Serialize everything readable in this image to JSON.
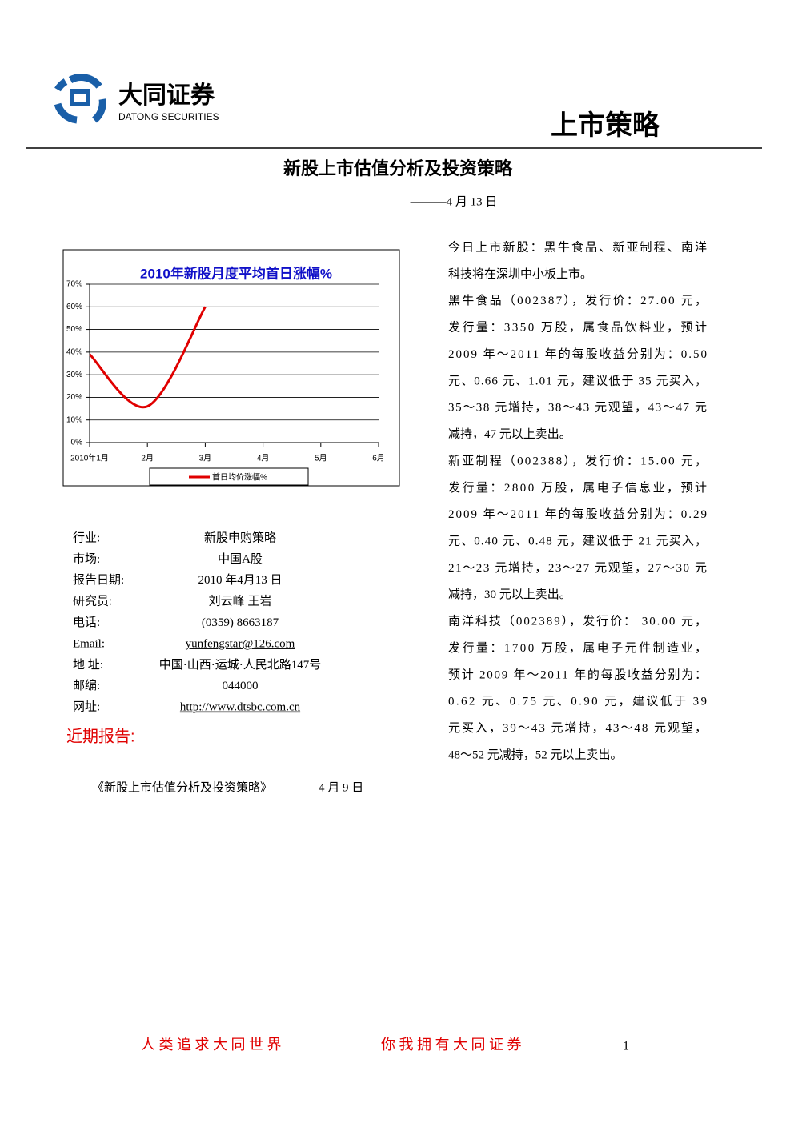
{
  "header": {
    "logo_cn": "大同证券",
    "logo_en": "DATONG SECURITIES",
    "section": "上市策略"
  },
  "title": "新股上市估值分析及投资策略",
  "date": "———4 月 13 日",
  "chart_data": {
    "type": "line",
    "title": "2010年新股月度平均首日涨幅%",
    "categories": [
      "2010年1月",
      "2月",
      "3月",
      "4月",
      "5月",
      "6月"
    ],
    "series": [
      {
        "name": "首日均价涨幅%",
        "color": "#e00000",
        "values": [
          39,
          16,
          60,
          null,
          null,
          null
        ]
      }
    ],
    "ylim": [
      0,
      70
    ],
    "yticks": [
      {
        "value": 0,
        "label": "0%"
      },
      {
        "value": 10,
        "label": "10%"
      },
      {
        "value": 20,
        "label": "20%"
      },
      {
        "value": 30,
        "label": "30%"
      },
      {
        "value": 40,
        "label": "40%"
      },
      {
        "value": 50,
        "label": "50%"
      },
      {
        "value": 60,
        "label": "60%"
      },
      {
        "value": 70,
        "label": "70%"
      }
    ],
    "grid": true,
    "legend": "bottom"
  },
  "info": [
    [
      "行业:",
      "新股申购策略"
    ],
    [
      "市场:",
      "中国A股"
    ],
    [
      "报告日期:",
      "2010  年4月13  日"
    ],
    [
      "研究员:",
      "刘云峰    王岩"
    ],
    [
      "电话:",
      "(0359)  8663187"
    ],
    [
      "Email:",
      "yunfengstar@126.com"
    ],
    [
      "地  址:",
      "中国·山西·运城·人民北路147号"
    ],
    [
      "邮编:",
      "044000"
    ],
    [
      "网址:",
      "http://www.dtsbc.com.cn"
    ]
  ],
  "recent_heading": "近期报告:",
  "recent": [
    [
      "《新股上市估值分析及投资策略》",
      "4 月 9 日"
    ]
  ],
  "paragraphs": [
    [
      "今日上市新股：黑牛食品、新亚制程、南洋",
      "科技将在深圳中小板上市。"
    ],
    [
      "黑牛食品（002387），发行价：27.00 元，",
      "发行量：3350 万股，属食品饮料业，预计",
      "2009 年～2011 年的每股收益分别为：0.50",
      "元、0.66 元、1.01 元，建议低于 35 元买入，",
      "35～38 元增持，38～43 元观望，43～47 元",
      "减持，47 元以上卖出。"
    ],
    [
      "新亚制程（002388），发行价：15.00 元，",
      "发行量：2800 万股，属电子信息业，预计",
      "2009 年～2011 年的每股收益分别为：0.29",
      "元、0.40 元、0.48 元，建议低于 21 元买入，",
      "21～23 元增持，23～27 元观望，27～30 元",
      "减持，30 元以上卖出。"
    ],
    [
      "南洋科技（002389），发行价： 30.00 元，",
      "发行量：1700 万股，属电子元件制造业，",
      "预计 2009 年～2011 年的每股收益分别为：",
      "0.62 元、0.75 元、0.90 元，建议低于 39",
      "元买入，39～43 元增持，43～48 元观望，",
      "48～52 元减持，52 元以上卖出。"
    ]
  ],
  "footer": {
    "left": "人 类 追 求 大 同 世 界",
    "right": "你 我 拥 有 大 同 证 券",
    "page": "1"
  }
}
